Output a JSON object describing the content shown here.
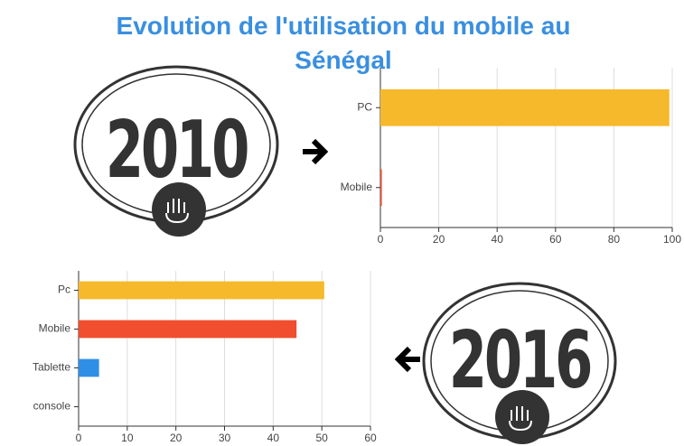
{
  "title": "Evolution de l'utilisation du mobile au Sénégal",
  "badges": [
    "2010",
    "2016"
  ],
  "chart_data": [
    {
      "type": "hbar",
      "categories": [
        "PC",
        "Mobile"
      ],
      "values": [
        99,
        0.5
      ],
      "colors": [
        "#f6b92b",
        "#f04e2f"
      ],
      "xlim": [
        0,
        100
      ],
      "xticks": [
        0,
        20,
        40,
        60,
        80,
        100
      ],
      "grid": true
    },
    {
      "type": "hbar",
      "categories": [
        "Pc",
        "Mobile",
        "Tablette",
        "console"
      ],
      "values": [
        50.5,
        44.8,
        4.2,
        0
      ],
      "colors": [
        "#f6b92b",
        "#f04e2f",
        "#2f8fe6",
        "#888888"
      ],
      "xlim": [
        0,
        60
      ],
      "xticks": [
        0,
        10,
        20,
        30,
        40,
        50,
        60
      ],
      "grid": true
    }
  ]
}
